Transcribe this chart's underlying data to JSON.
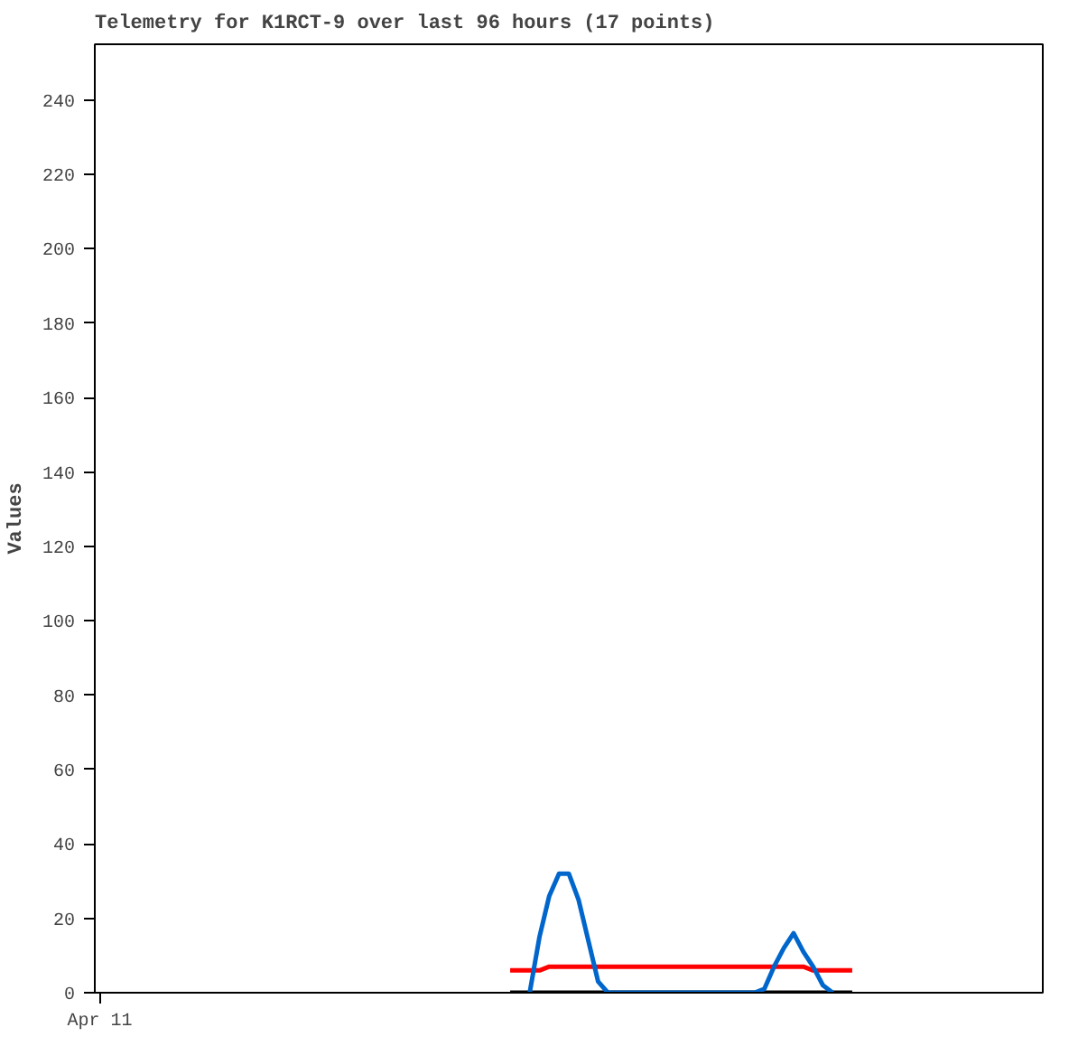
{
  "chart_data": {
    "type": "line",
    "title": "Telemetry for K1RCT-9 over last 96 hours (17 points)",
    "ylabel": "Values",
    "categories": [
      "Apr 11",
      null,
      null,
      null,
      null,
      null,
      null,
      null,
      null,
      null,
      null,
      null,
      null,
      null,
      null,
      null,
      null,
      null,
      null,
      null,
      null,
      null,
      null,
      null,
      null,
      null,
      null,
      null,
      null,
      null,
      null,
      null,
      null,
      null,
      null,
      null,
      null,
      null,
      null,
      null,
      null,
      null,
      null,
      null,
      null,
      null,
      null,
      null,
      null,
      null,
      null,
      null,
      null,
      null,
      null,
      null,
      null,
      null,
      null,
      null,
      null,
      null,
      null,
      null,
      null,
      null,
      null,
      null,
      null,
      null,
      null,
      null,
      null,
      null,
      null,
      null,
      null,
      null,
      null,
      null,
      null,
      null,
      null,
      null,
      null,
      null,
      null,
      null,
      null,
      null,
      null,
      null,
      null,
      null,
      null,
      null,
      null
    ],
    "ylim": [
      0,
      255
    ],
    "yticks": [
      0,
      20,
      40,
      60,
      80,
      100,
      120,
      140,
      160,
      180,
      200,
      220,
      240
    ],
    "grid": false,
    "line_style": "solid",
    "series": [
      {
        "color": "#000000",
        "values": [
          null,
          null,
          null,
          null,
          null,
          null,
          null,
          null,
          null,
          null,
          null,
          null,
          null,
          null,
          null,
          null,
          null,
          null,
          null,
          null,
          null,
          null,
          null,
          null,
          null,
          null,
          null,
          null,
          null,
          null,
          null,
          null,
          null,
          null,
          null,
          null,
          null,
          null,
          null,
          null,
          null,
          null,
          0,
          0,
          0,
          0,
          0,
          0,
          0,
          0,
          0,
          0,
          0,
          0,
          0,
          0,
          0,
          0,
          0,
          0,
          0,
          0,
          0,
          0,
          0,
          0,
          0,
          0,
          0,
          0,
          0,
          0,
          0,
          0,
          0,
          0,
          0,
          0,
          null,
          null,
          null,
          null,
          null,
          null,
          null,
          null,
          null,
          null,
          null,
          null,
          null,
          null,
          null,
          null,
          null,
          null,
          null
        ]
      },
      {
        "color": "#ff0000",
        "values": [
          null,
          null,
          null,
          null,
          null,
          null,
          null,
          null,
          null,
          null,
          null,
          null,
          null,
          null,
          null,
          null,
          null,
          null,
          null,
          null,
          null,
          null,
          null,
          null,
          null,
          null,
          null,
          null,
          null,
          null,
          null,
          null,
          null,
          null,
          null,
          null,
          null,
          null,
          null,
          null,
          null,
          null,
          6,
          6,
          6,
          6,
          7,
          7,
          7,
          7,
          7,
          7,
          7,
          7,
          7,
          7,
          7,
          7,
          7,
          7,
          7,
          7,
          7,
          7,
          7,
          7,
          7,
          7,
          7,
          7,
          7,
          7,
          7,
          6,
          6,
          6,
          6,
          6,
          null,
          null,
          null,
          null,
          null,
          null,
          null,
          null,
          null,
          null,
          null,
          null,
          null,
          null,
          null,
          null,
          null,
          null,
          null
        ]
      },
      {
        "color": "#0066cc",
        "values": [
          null,
          null,
          null,
          null,
          null,
          null,
          null,
          null,
          null,
          null,
          null,
          null,
          null,
          null,
          null,
          null,
          null,
          null,
          null,
          null,
          null,
          null,
          null,
          null,
          null,
          null,
          null,
          null,
          null,
          null,
          null,
          null,
          null,
          null,
          null,
          null,
          null,
          null,
          null,
          null,
          null,
          null,
          null,
          null,
          0,
          15,
          26,
          32,
          32,
          25,
          14,
          3,
          0,
          0,
          0,
          0,
          0,
          0,
          0,
          0,
          0,
          0,
          0,
          0,
          0,
          0,
          0,
          0,
          1,
          7,
          12,
          16,
          11,
          7,
          2,
          0,
          null,
          null,
          null,
          null,
          null,
          null,
          null,
          null,
          null,
          null,
          null,
          null,
          null,
          null,
          null,
          null,
          null,
          null,
          null,
          null,
          null
        ]
      }
    ]
  }
}
